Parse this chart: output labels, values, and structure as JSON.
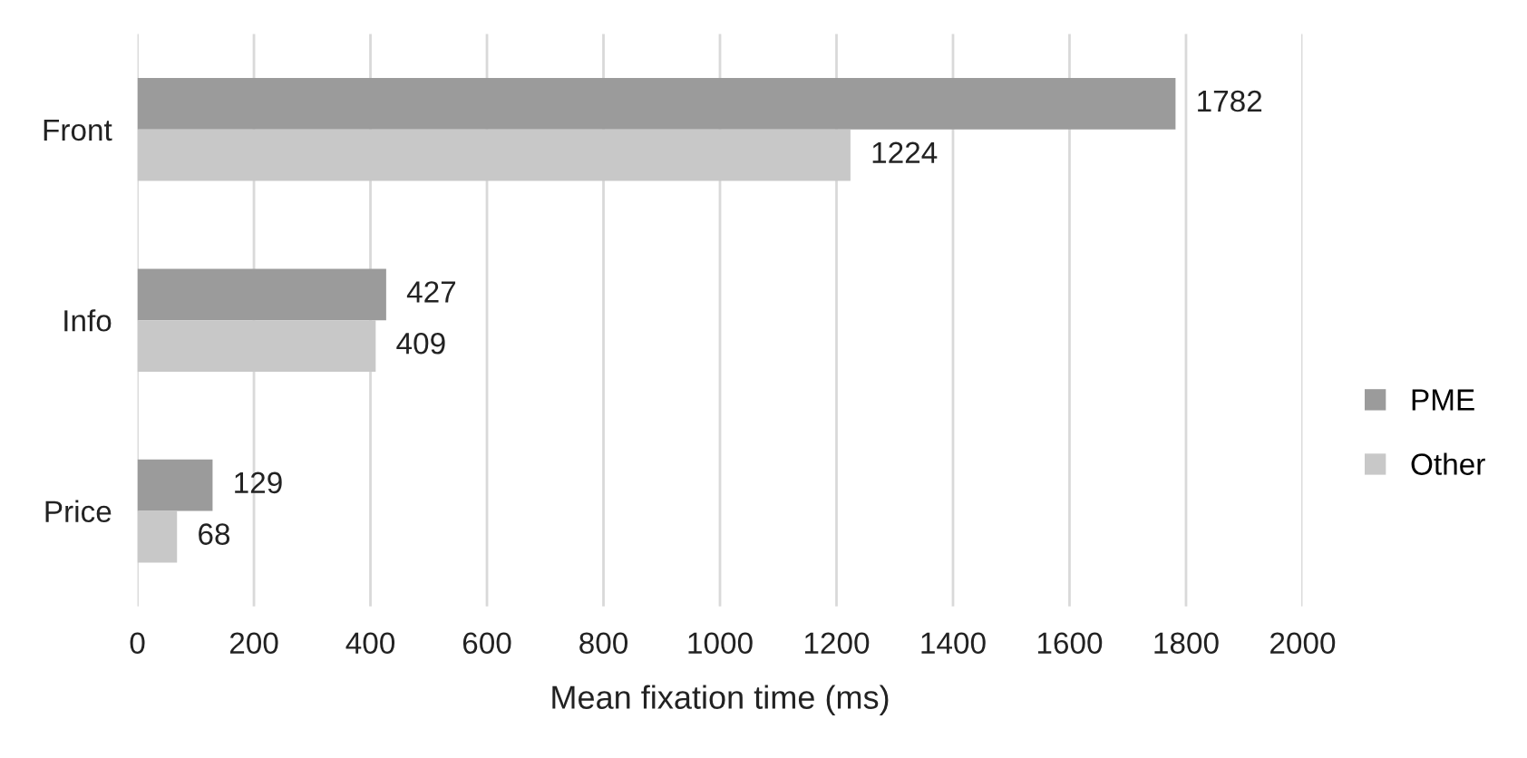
{
  "chart_data": {
    "type": "bar",
    "orientation": "horizontal",
    "xlabel": "Mean fixation time (ms)",
    "categories": [
      "Front",
      "Info",
      "Price"
    ],
    "series": [
      {
        "name": "PME",
        "color": "#9b9b9b",
        "values": [
          1782,
          427,
          129
        ]
      },
      {
        "name": "Other",
        "color": "#c8c8c8",
        "values": [
          1224,
          409,
          68
        ]
      }
    ],
    "xlim": [
      0,
      2000
    ],
    "xticks": [
      0,
      200,
      400,
      600,
      800,
      1000,
      1200,
      1400,
      1600,
      1800,
      2000
    ],
    "grid": "x",
    "legend": "right",
    "data_labels": true
  }
}
